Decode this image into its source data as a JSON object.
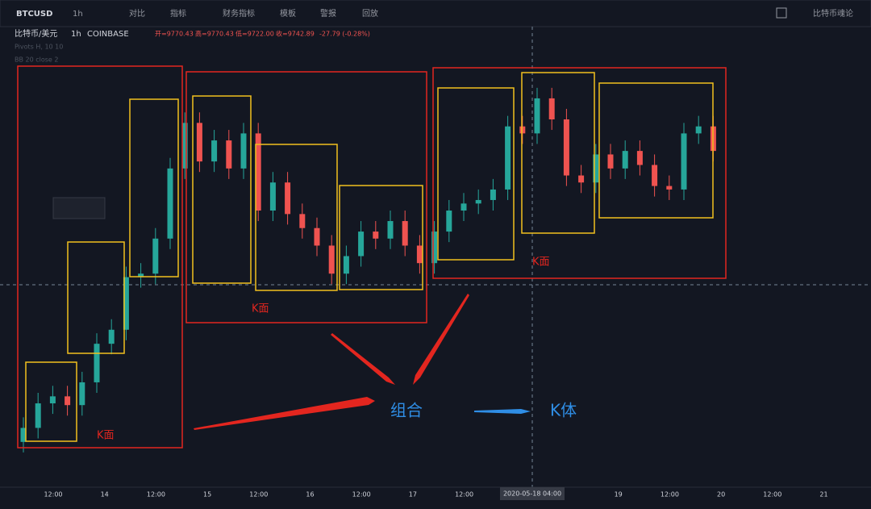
{
  "toolbar": {
    "symbol": "BTCUSD",
    "interval": "1h",
    "items": [
      "对比",
      "指标",
      "财务指标",
      "模板",
      "警报",
      "回放"
    ],
    "right": "比特币魂论"
  },
  "legend": {
    "name": "比特币/美元",
    "interval": "1h",
    "exchange": "COINBASE",
    "open": "开=9770.43",
    "high": "高=9770.43",
    "low": "低=9722.00",
    "close": "收=9742.89",
    "change": "-27.79 (-0.28%)",
    "indicators": [
      "Pivots H, 10 10",
      "BB 20 close 2"
    ]
  },
  "annotations": {
    "face_labels": [
      "K面",
      "K面",
      "K面"
    ],
    "combo": "组合",
    "body": "K体"
  },
  "crosshair_label": "2020-05-18  04:00",
  "chart_data": {
    "type": "candlestick",
    "up_color": "#26a69a",
    "down_color": "#ef5350",
    "ylim": [
      8700,
      10000
    ],
    "xlabels": [
      "12:00",
      "14",
      "12:00",
      "15",
      "12:00",
      "16",
      "12:00",
      "17",
      "12:00",
      null,
      null,
      "19",
      "12:00",
      "20",
      "12:00",
      "21"
    ],
    "open": [
      8820,
      8860,
      8930,
      8950,
      8925,
      8990,
      9100,
      9140,
      9290,
      9300,
      9400,
      9600,
      9730,
      9620,
      9680,
      9600,
      9700,
      9480,
      9560,
      9470,
      9430,
      9380,
      9300,
      9350,
      9420,
      9400,
      9450,
      9380,
      9330,
      9420,
      9480,
      9500,
      9510,
      9540,
      9720,
      9700,
      9800,
      9740,
      9580,
      9560,
      9640,
      9600,
      9650,
      9610,
      9550,
      9540,
      9700,
      9720
    ],
    "high": [
      8890,
      8960,
      8980,
      8980,
      9020,
      9130,
      9170,
      9320,
      9330,
      9430,
      9630,
      9760,
      9760,
      9710,
      9710,
      9730,
      9730,
      9590,
      9590,
      9500,
      9460,
      9410,
      9380,
      9450,
      9450,
      9480,
      9480,
      9410,
      9450,
      9510,
      9530,
      9540,
      9570,
      9750,
      9750,
      9830,
      9830,
      9770,
      9610,
      9670,
      9670,
      9680,
      9680,
      9640,
      9580,
      9730,
      9750,
      9750
    ],
    "low": [
      8790,
      8830,
      8900,
      8895,
      8895,
      8960,
      9070,
      9110,
      9260,
      9270,
      9370,
      9570,
      9590,
      9590,
      9570,
      9570,
      9450,
      9450,
      9440,
      9400,
      9350,
      9270,
      9270,
      9320,
      9370,
      9370,
      9350,
      9300,
      9300,
      9390,
      9450,
      9470,
      9480,
      9510,
      9670,
      9670,
      9710,
      9550,
      9530,
      9530,
      9570,
      9570,
      9580,
      9520,
      9510,
      9510,
      9670,
      9620
    ],
    "close": [
      8860,
      8930,
      8950,
      8925,
      8990,
      9100,
      9140,
      9290,
      9300,
      9400,
      9600,
      9730,
      9620,
      9680,
      9600,
      9700,
      9480,
      9560,
      9470,
      9430,
      9380,
      9300,
      9350,
      9420,
      9400,
      9450,
      9380,
      9330,
      9420,
      9480,
      9500,
      9510,
      9540,
      9720,
      9700,
      9800,
      9740,
      9580,
      9560,
      9640,
      9600,
      9650,
      9610,
      9550,
      9540,
      9700,
      9720,
      9650
    ]
  }
}
